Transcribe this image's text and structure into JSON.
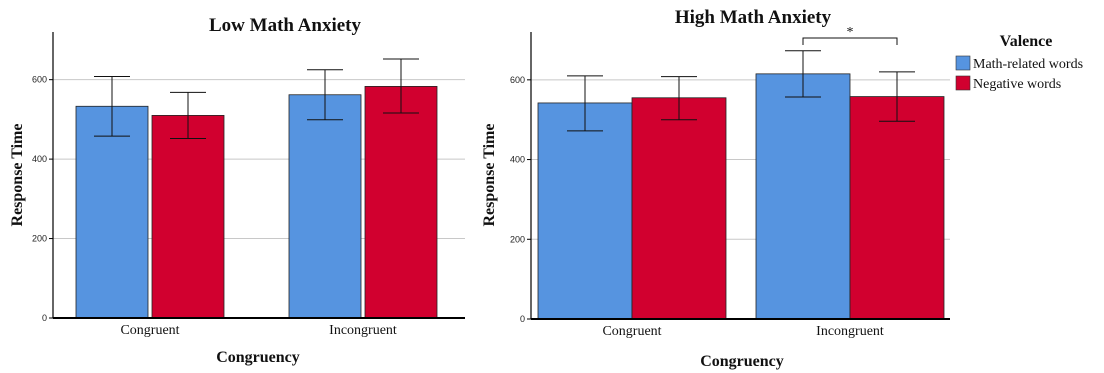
{
  "chart_data": [
    {
      "type": "bar",
      "title": "Low Math Anxiety",
      "xlabel": "Congruency",
      "ylabel": "Response Time",
      "categories": [
        "Congruent",
        "Incongruent"
      ],
      "ylim": [
        0,
        720
      ],
      "yticks": [
        0,
        200,
        400,
        600
      ],
      "grid": true,
      "series": [
        {
          "name": "Math-related words",
          "values": [
            533,
            562
          ],
          "error_low": [
            458,
            499
          ],
          "error_high": [
            608,
            625
          ]
        },
        {
          "name": "Negative words",
          "values": [
            510,
            583
          ],
          "error_low": [
            452,
            516
          ],
          "error_high": [
            568,
            652
          ]
        }
      ]
    },
    {
      "type": "bar",
      "title": "High Math Anxiety",
      "xlabel": "Congruency",
      "ylabel": "Response Time",
      "categories": [
        "Congruent",
        "Incongruent"
      ],
      "ylim": [
        0,
        720
      ],
      "yticks": [
        0,
        200,
        400,
        600
      ],
      "grid": true,
      "series": [
        {
          "name": "Math-related words",
          "values": [
            542,
            615
          ],
          "error_low": [
            472,
            557
          ],
          "error_high": [
            610,
            673
          ]
        },
        {
          "name": "Negative words",
          "values": [
            555,
            558
          ],
          "error_low": [
            500,
            496
          ],
          "error_high": [
            608,
            620
          ]
        }
      ],
      "annotation": {
        "text": "*",
        "category": "Incongruent"
      }
    }
  ],
  "legend": {
    "title": "Valence",
    "placement": "right",
    "items": [
      {
        "label": "Math-related words",
        "color": "#5694E0"
      },
      {
        "label": "Negative words",
        "color": "#D1002F"
      }
    ]
  },
  "colors": {
    "series": [
      "#5694E0",
      "#D1002F"
    ],
    "grid": "#c8c8c8",
    "axis": "#000000"
  }
}
